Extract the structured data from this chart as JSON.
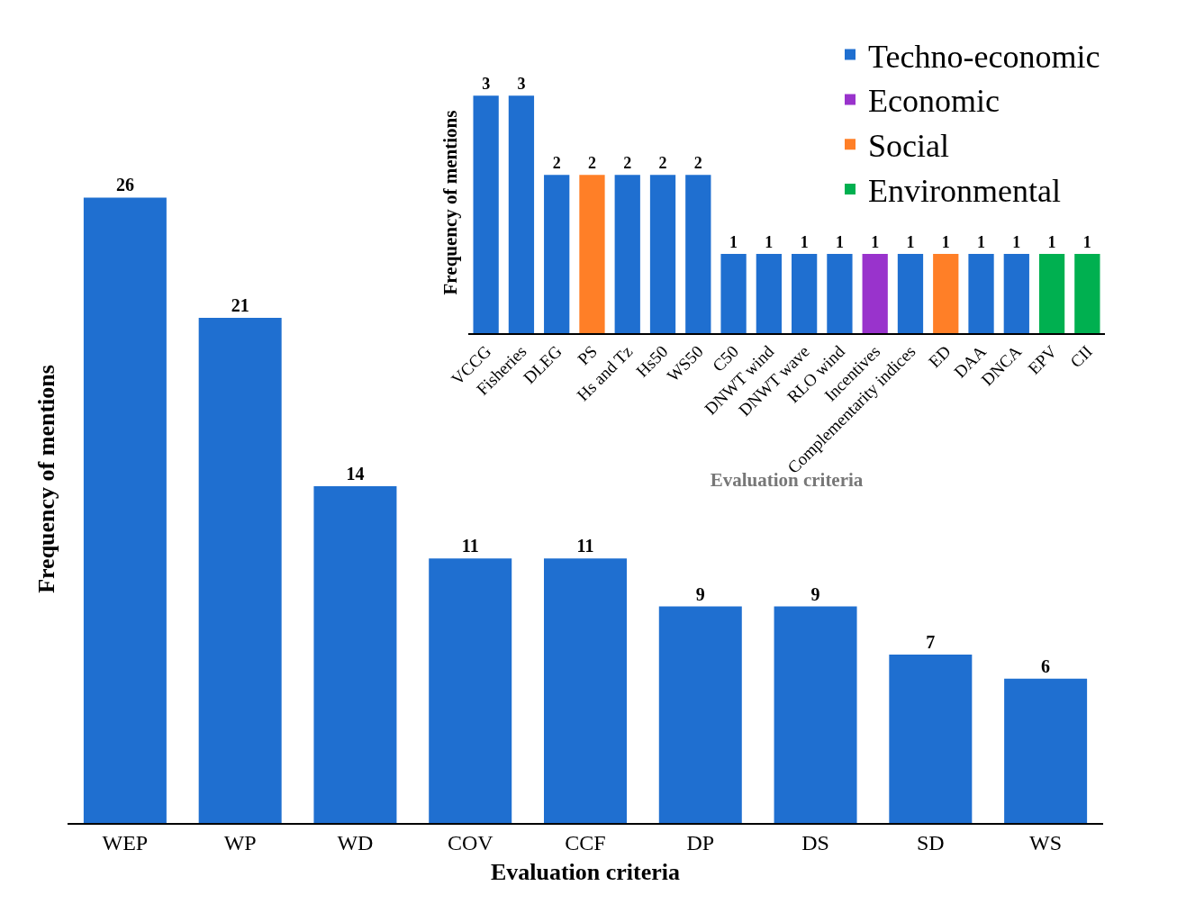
{
  "chart_data": [
    {
      "type": "bar",
      "xlabel": "Evaluation criteria",
      "ylabel": "Frequency of mentions",
      "categories": [
        "WEP",
        "WP",
        "WD",
        "COV",
        "CCF",
        "DP",
        "DS",
        "SD",
        "WS"
      ],
      "values": [
        26,
        21,
        14,
        11,
        11,
        9,
        9,
        7,
        6
      ],
      "color": "#1f6fd0",
      "data_labels": true,
      "tick_labels": "x"
    },
    {
      "type": "bar",
      "xlabel": "Evaluation criteria",
      "ylabel": "Frequency of mentions",
      "categories": [
        "VCCG",
        "Fisheries",
        "DLEG",
        "PS",
        "Hs and Tz",
        "Hs50",
        "WS50",
        "C50",
        "DNWT wind",
        "DNWT wave",
        "RLO wind",
        "Incentives",
        "Complementarity indices",
        "ED",
        "DAA",
        "DNCA",
        "EPV",
        "CII"
      ],
      "series": [
        {
          "name": "Techno-economic",
          "color": "#1f6fd0",
          "values": [
            3,
            3,
            2,
            null,
            2,
            2,
            2,
            1,
            1,
            1,
            1,
            null,
            1,
            null,
            1,
            1,
            null,
            null
          ]
        },
        {
          "name": "Economic",
          "color": "#9933cc",
          "values": [
            null,
            null,
            null,
            null,
            null,
            null,
            null,
            null,
            null,
            null,
            null,
            1,
            null,
            null,
            null,
            null,
            null,
            null
          ]
        },
        {
          "name": "Social",
          "color": "#ff7f27",
          "values": [
            null,
            null,
            null,
            2,
            null,
            null,
            null,
            null,
            null,
            null,
            null,
            null,
            null,
            1,
            null,
            null,
            null,
            null
          ]
        },
        {
          "name": "Environmental",
          "color": "#00b050",
          "values": [
            null,
            null,
            null,
            null,
            null,
            null,
            null,
            null,
            null,
            null,
            null,
            null,
            null,
            null,
            null,
            null,
            1,
            1
          ]
        }
      ],
      "data_labels": true,
      "tick_labels": "x",
      "legend": "top right"
    }
  ]
}
